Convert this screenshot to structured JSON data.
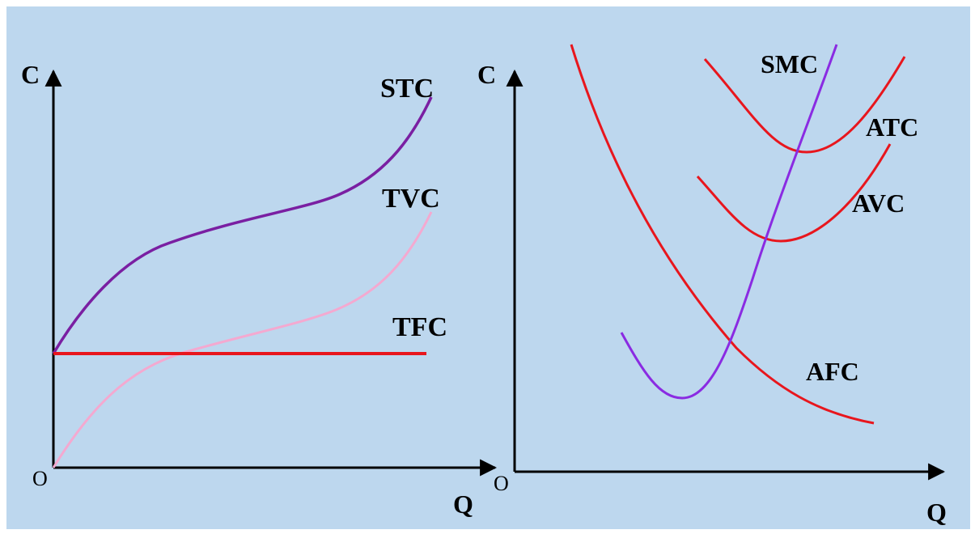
{
  "colors": {
    "background": "#bdd7ee",
    "axis": "#000000",
    "stc": "#7a1fa2",
    "tvc": "#f4a9d0",
    "tfc": "#e8161d",
    "red_curves": "#e8161d",
    "smc": "#8a2be2"
  },
  "chart_data": [
    {
      "type": "line",
      "ylabel": "C",
      "xlabel": "Q",
      "origin_label": "O",
      "series": [
        {
          "name": "STC",
          "color": "#7a1fa2"
        },
        {
          "name": "TVC",
          "color": "#f4a9d0"
        },
        {
          "name": "TFC",
          "color": "#e8161d"
        }
      ]
    },
    {
      "type": "line",
      "ylabel": "C",
      "xlabel": "Q",
      "origin_label": "O",
      "series": [
        {
          "name": "SMC",
          "color": "#8a2be2"
        },
        {
          "name": "ATC",
          "color": "#e8161d"
        },
        {
          "name": "AVC",
          "color": "#e8161d"
        },
        {
          "name": "AFC",
          "color": "#e8161d"
        }
      ]
    }
  ]
}
